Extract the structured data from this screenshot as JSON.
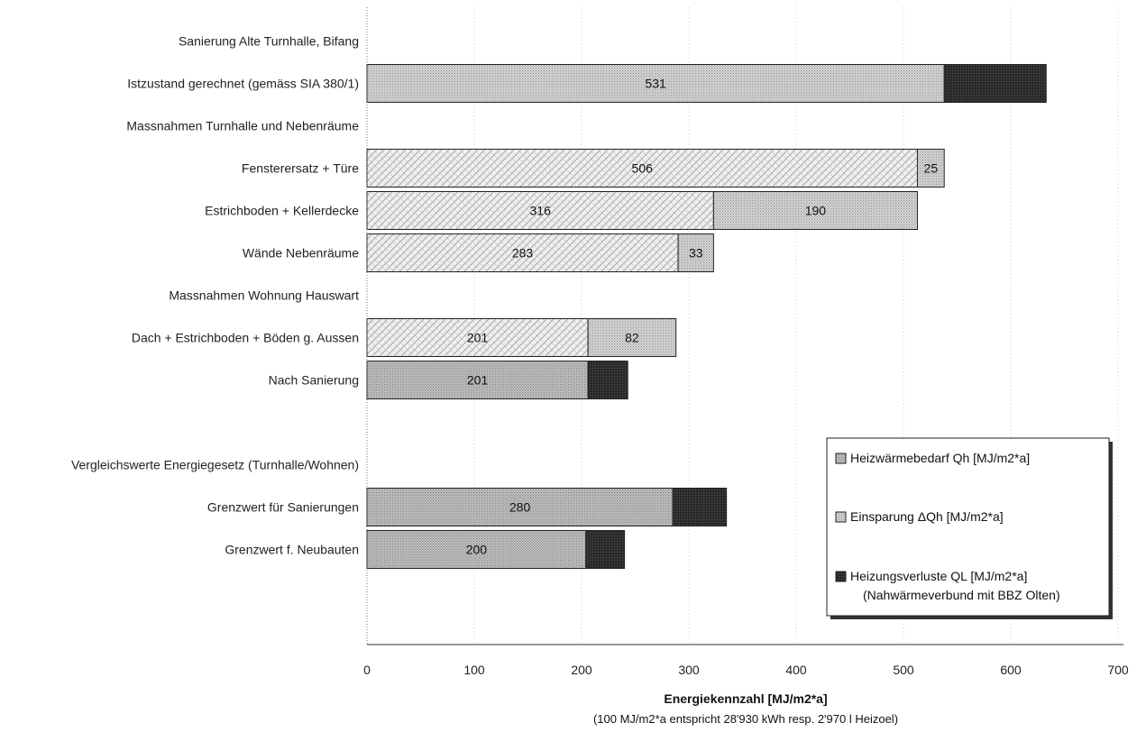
{
  "chart_data": {
    "type": "bar",
    "orientation": "horizontal",
    "stacked": true,
    "xlim": [
      0,
      700
    ],
    "xticks": [
      0,
      100,
      200,
      300,
      400,
      500,
      600,
      700
    ],
    "grid": "vertical",
    "legend_position": "bottom-right",
    "xlabel": "Energiekennzahl [MJ/m2*a]",
    "xlabel_note": "(100 MJ/m2*a entspricht 28'930 kWh resp. 2'970 l Heizoel)",
    "categories": [
      {
        "label": "Sanierung Alte Turnhalle, Bifang",
        "bars": []
      },
      {
        "label": "Istzustand gerechnet (gemäss SIA 380/1)",
        "bars": [
          {
            "series": "einsparung",
            "start": 0,
            "value": 538,
            "label": "531"
          },
          {
            "series": "verluste",
            "start": 538,
            "value": 95,
            "label": ""
          }
        ]
      },
      {
        "label": "Massnahmen Turnhalle und Nebenräume",
        "bars": []
      },
      {
        "label": "Fensterersatz + Türe",
        "bars": [
          {
            "series": "hatch",
            "start": 0,
            "value": 513,
            "label": "506"
          },
          {
            "series": "einsparung",
            "start": 513,
            "value": 25,
            "label": "25"
          }
        ]
      },
      {
        "label": "Estrichboden + Kellerdecke",
        "bars": [
          {
            "series": "hatch",
            "start": 0,
            "value": 323,
            "label": "316"
          },
          {
            "series": "einsparung",
            "start": 323,
            "value": 190,
            "label": "190"
          }
        ]
      },
      {
        "label": "Wände Nebenräume",
        "bars": [
          {
            "series": "hatch",
            "start": 0,
            "value": 290,
            "label": "283"
          },
          {
            "series": "einsparung",
            "start": 290,
            "value": 33,
            "label": "33"
          }
        ]
      },
      {
        "label": "Massnahmen Wohnung Hauswart",
        "bars": []
      },
      {
        "label": "Dach + Estrichboden + Böden g. Aussen",
        "bars": [
          {
            "series": "hatch",
            "start": 0,
            "value": 206,
            "label": "201"
          },
          {
            "series": "einsparung",
            "start": 206,
            "value": 82,
            "label": "82"
          }
        ]
      },
      {
        "label": "Nach Sanierung",
        "bars": [
          {
            "series": "heizwaerme",
            "start": 0,
            "value": 206,
            "label": "201"
          },
          {
            "series": "verluste",
            "start": 206,
            "value": 37,
            "label": ""
          }
        ]
      },
      {
        "label": "",
        "bars": []
      },
      {
        "label": "Vergleichswerte Energiegesetz (Turnhalle/Wohnen)",
        "bars": []
      },
      {
        "label": "Grenzwert für Sanierungen",
        "bars": [
          {
            "series": "heizwaerme",
            "start": 0,
            "value": 285,
            "label": "280"
          },
          {
            "series": "verluste",
            "start": 285,
            "value": 50,
            "label": ""
          }
        ]
      },
      {
        "label": "Grenzwert f. Neubauten",
        "bars": [
          {
            "series": "heizwaerme",
            "start": 0,
            "value": 204,
            "label": "200"
          },
          {
            "series": "verluste",
            "start": 204,
            "value": 36,
            "label": ""
          }
        ]
      }
    ],
    "legend": [
      {
        "series": "heizwaerme",
        "label": "Heizwärmebedarf Qh [MJ/m2*a]"
      },
      {
        "series": "einsparung",
        "label": "Einsparung ΔQh [MJ/m2*a]"
      },
      {
        "series": "verluste",
        "label": "Heizungsverluste QL [MJ/m2*a]",
        "label2": "(Nahwärmeverbund mit BBZ Olten)"
      }
    ],
    "colors": {
      "heizwaerme": "#c8c8c8",
      "einsparung": "#b8b8b8",
      "hatch": "#e4e4e4",
      "verluste": "#2a2a2a",
      "grid": "#bbbbbb"
    }
  }
}
